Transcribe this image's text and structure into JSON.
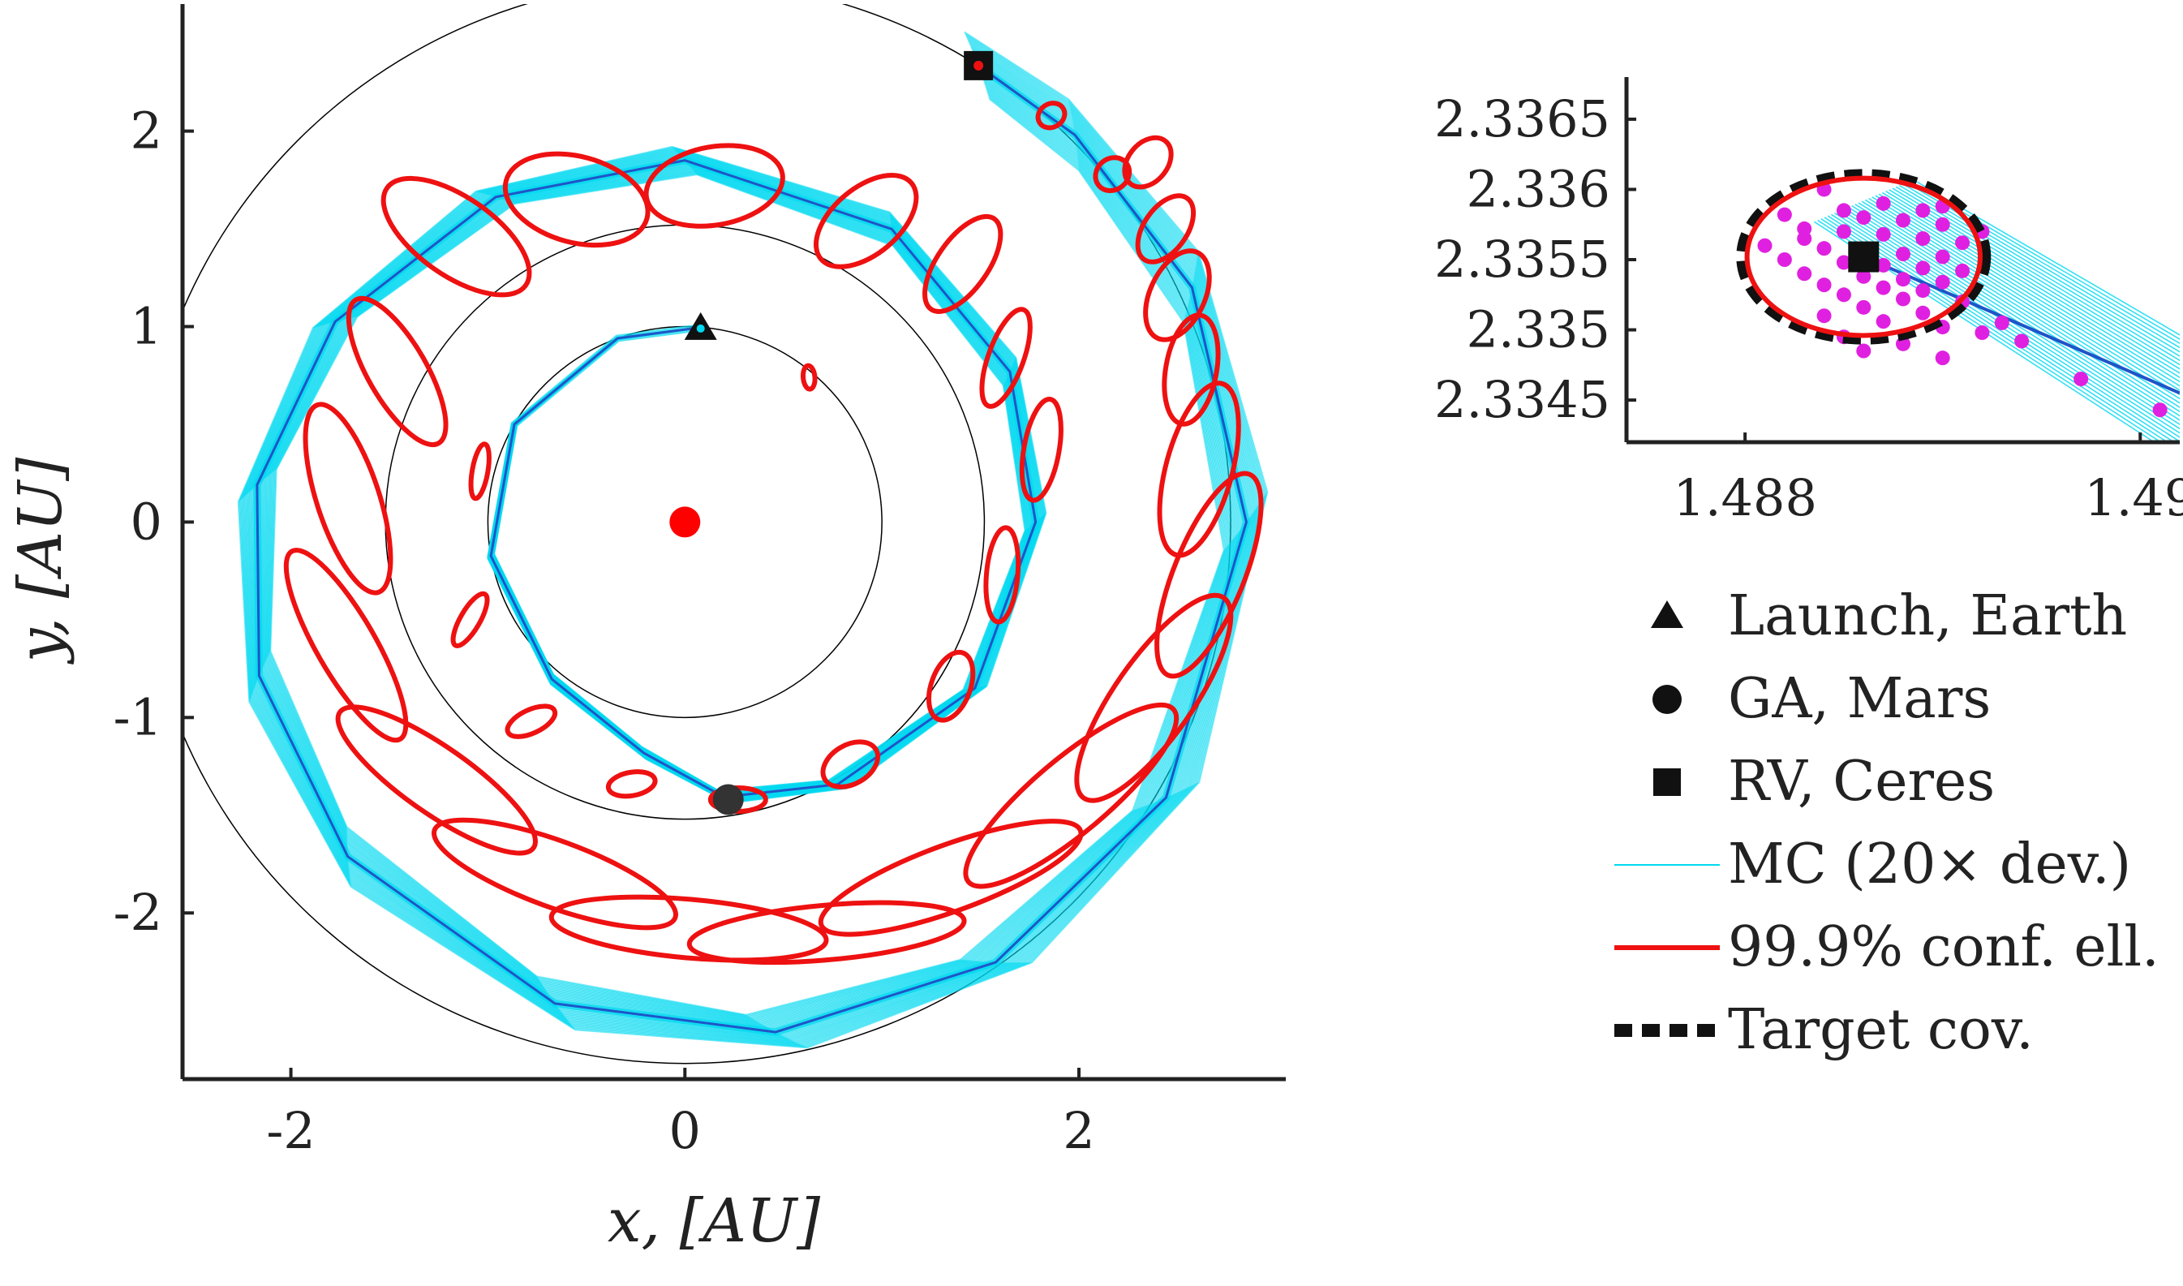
{
  "chart_data": [
    {
      "type": "scatter",
      "panel": "main-trajectory",
      "xlabel": "x, [AU]",
      "ylabel": "y, [AU]",
      "xlim": [
        -2.55,
        3.05
      ],
      "ylim": [
        -2.85,
        2.65
      ],
      "xticks": [
        -2,
        0,
        2
      ],
      "yticks": [
        -2,
        -1,
        0,
        1,
        2
      ],
      "xtick_labels": [
        "-2",
        "0",
        "2"
      ],
      "ytick_labels": [
        "-2",
        "-1",
        "0",
        "1",
        "2"
      ],
      "grid": false,
      "sun": {
        "x": 0,
        "y": 0,
        "color": "#ff0000"
      },
      "planet_orbits": [
        {
          "name": "Earth orbit",
          "radius": 1.0
        },
        {
          "name": "Mars orbit",
          "radius": 1.52
        },
        {
          "name": "Ceres orbit",
          "radius": 2.77
        }
      ],
      "events": [
        {
          "label": "Launch, Earth",
          "marker": "triangle",
          "x": 0.08,
          "y": 0.99
        },
        {
          "label": "GA, Mars",
          "marker": "circle",
          "x": 0.22,
          "y": -1.42
        },
        {
          "label": "RV, Ceres",
          "marker": "square",
          "x": 1.49,
          "y": 2.335
        }
      ],
      "nominal_trajectory_polar": {
        "description_r_theta_deg": [
          [
            1.0,
            85
          ],
          [
            1.0,
            110
          ],
          [
            1.0,
            150
          ],
          [
            1.0,
            190
          ],
          [
            1.05,
            230
          ],
          [
            1.2,
            260
          ],
          [
            1.42,
            278
          ],
          [
            1.55,
            300
          ],
          [
            1.7,
            330
          ],
          [
            1.78,
            0
          ],
          [
            1.82,
            25
          ],
          [
            1.83,
            55
          ],
          [
            1.85,
            90
          ],
          [
            1.92,
            120
          ],
          [
            2.05,
            150
          ],
          [
            2.18,
            175
          ],
          [
            2.3,
            200
          ],
          [
            2.42,
            225
          ],
          [
            2.55,
            255
          ],
          [
            2.65,
            280
          ],
          [
            2.75,
            305
          ],
          [
            2.82,
            330
          ],
          [
            2.85,
            0
          ],
          [
            2.84,
            25
          ],
          [
            2.8,
            45
          ],
          [
            2.77,
            57.5
          ]
        ]
      },
      "ellipses": [
        {
          "x": 0.63,
          "y": 0.74,
          "a": 0.06,
          "b": 0.03,
          "angle": 95
        },
        {
          "x": -1.04,
          "y": 0.26,
          "a": 0.14,
          "b": 0.04,
          "angle": 80
        },
        {
          "x": -1.09,
          "y": -0.5,
          "a": 0.15,
          "b": 0.05,
          "angle": 60
        },
        {
          "x": -0.78,
          "y": -1.02,
          "a": 0.13,
          "b": 0.06,
          "angle": 25
        },
        {
          "x": -0.27,
          "y": -1.34,
          "a": 0.12,
          "b": 0.06,
          "angle": 10
        },
        {
          "x": 0.27,
          "y": -1.42,
          "a": 0.14,
          "b": 0.06,
          "angle": 0
        },
        {
          "x": 0.84,
          "y": -1.24,
          "a": 0.15,
          "b": 0.1,
          "angle": 30
        },
        {
          "x": 1.35,
          "y": -0.84,
          "a": 0.18,
          "b": 0.1,
          "angle": 70
        },
        {
          "x": 1.61,
          "y": -0.27,
          "a": 0.24,
          "b": 0.08,
          "angle": 85
        },
        {
          "x": 1.81,
          "y": 0.37,
          "a": 0.26,
          "b": 0.09,
          "angle": 80
        },
        {
          "x": 1.63,
          "y": 0.84,
          "a": 0.26,
          "b": 0.09,
          "angle": 70
        },
        {
          "x": 1.41,
          "y": 1.32,
          "a": 0.28,
          "b": 0.13,
          "angle": 55
        },
        {
          "x": 0.92,
          "y": 1.54,
          "a": 0.3,
          "b": 0.17,
          "angle": 40
        },
        {
          "x": 0.15,
          "y": 1.72,
          "a": 0.35,
          "b": 0.2,
          "angle": 10
        },
        {
          "x": -0.55,
          "y": 1.65,
          "a": 0.37,
          "b": 0.22,
          "angle": -15
        },
        {
          "x": -1.16,
          "y": 1.46,
          "a": 0.43,
          "b": 0.2,
          "angle": -35
        },
        {
          "x": -1.46,
          "y": 0.77,
          "a": 0.42,
          "b": 0.15,
          "angle": -60
        },
        {
          "x": -1.71,
          "y": 0.12,
          "a": 0.5,
          "b": 0.16,
          "angle": -72
        },
        {
          "x": -1.72,
          "y": -0.63,
          "a": 0.55,
          "b": 0.15,
          "angle": -60
        },
        {
          "x": -1.26,
          "y": -1.32,
          "a": 0.6,
          "b": 0.17,
          "angle": -35
        },
        {
          "x": -0.66,
          "y": -1.8,
          "a": 0.65,
          "b": 0.17,
          "angle": -20
        },
        {
          "x": 0.02,
          "y": -2.08,
          "a": 0.7,
          "b": 0.15,
          "angle": -5
        },
        {
          "x": 0.72,
          "y": -2.1,
          "a": 0.7,
          "b": 0.14,
          "angle": 5
        },
        {
          "x": 1.35,
          "y": -1.82,
          "a": 0.7,
          "b": 0.17,
          "angle": 20
        },
        {
          "x": 1.96,
          "y": -1.4,
          "a": 0.68,
          "b": 0.19,
          "angle": 40
        },
        {
          "x": 2.38,
          "y": -0.9,
          "a": 0.62,
          "b": 0.2,
          "angle": 55
        },
        {
          "x": 2.66,
          "y": -0.27,
          "a": 0.55,
          "b": 0.18,
          "angle": 68
        },
        {
          "x": 2.61,
          "y": 0.27,
          "a": 0.45,
          "b": 0.17,
          "angle": 75
        },
        {
          "x": 2.57,
          "y": 0.78,
          "a": 0.28,
          "b": 0.13,
          "angle": 80
        },
        {
          "x": 2.5,
          "y": 1.16,
          "a": 0.24,
          "b": 0.14,
          "angle": 65
        },
        {
          "x": 2.44,
          "y": 1.5,
          "a": 0.19,
          "b": 0.11,
          "angle": 55
        },
        {
          "x": 2.35,
          "y": 1.84,
          "a": 0.14,
          "b": 0.1,
          "angle": 50
        },
        {
          "x": 2.17,
          "y": 1.78,
          "a": 0.09,
          "b": 0.08,
          "angle": 40
        },
        {
          "x": 1.86,
          "y": 2.08,
          "a": 0.07,
          "b": 0.06,
          "angle": 30
        }
      ]
    },
    {
      "type": "scatter",
      "panel": "zoom-at-rendezvous",
      "xlim": [
        1.4874,
        1.4902
      ],
      "ylim": [
        2.3342,
        2.3368
      ],
      "xticks": [
        1.488,
        1.49
      ],
      "yticks": [
        2.3345,
        2.335,
        2.3355,
        2.336,
        2.3365
      ],
      "xtick_labels": [
        "1.488",
        "1.49"
      ],
      "ytick_labels": [
        "2.3345",
        "2.335",
        "2.3355",
        "2.336",
        "2.3365"
      ],
      "grid": false,
      "target": {
        "x": 1.4886,
        "y": 2.33552
      },
      "confidence_ellipse": {
        "cx": 1.4886,
        "cy": 2.33552,
        "rx": 0.00059,
        "ry": 0.00056
      },
      "target_covariance": {
        "cx": 1.4886,
        "cy": 2.33552,
        "rx": 0.00062,
        "ry": 0.00059
      },
      "mc_points": [
        [
          1.4884,
          2.336
        ],
        [
          1.4887,
          2.3359
        ],
        [
          1.4885,
          2.33585
        ],
        [
          1.4889,
          2.33585
        ],
        [
          1.4882,
          2.33582
        ],
        [
          1.4886,
          2.3358
        ],
        [
          1.4888,
          2.33578
        ],
        [
          1.489,
          2.33575
        ],
        [
          1.4883,
          2.33572
        ],
        [
          1.4885,
          2.3357
        ],
        [
          1.4887,
          2.33568
        ],
        [
          1.4889,
          2.33565
        ],
        [
          1.4891,
          2.33562
        ],
        [
          1.4881,
          2.3356
        ],
        [
          1.4884,
          2.33558
        ],
        [
          1.4886,
          2.33556
        ],
        [
          1.4888,
          2.33554
        ],
        [
          1.489,
          2.33552
        ],
        [
          1.4882,
          2.3355
        ],
        [
          1.4885,
          2.33548
        ],
        [
          1.4887,
          2.33546
        ],
        [
          1.4889,
          2.33544
        ],
        [
          1.4891,
          2.33542
        ],
        [
          1.4883,
          2.3354
        ],
        [
          1.4886,
          2.33538
        ],
        [
          1.4888,
          2.33536
        ],
        [
          1.489,
          2.33534
        ],
        [
          1.4884,
          2.33532
        ],
        [
          1.4887,
          2.3353
        ],
        [
          1.4889,
          2.33528
        ],
        [
          1.4885,
          2.33525
        ],
        [
          1.4888,
          2.33522
        ],
        [
          1.4891,
          2.3352
        ],
        [
          1.4886,
          2.33516
        ],
        [
          1.4889,
          2.33512
        ],
        [
          1.4884,
          2.3351
        ],
        [
          1.4887,
          2.33506
        ],
        [
          1.489,
          2.33502
        ],
        [
          1.4893,
          2.33505
        ],
        [
          1.4892,
          2.33498
        ],
        [
          1.4885,
          2.33495
        ],
        [
          1.4888,
          2.3349
        ],
        [
          1.4894,
          2.33492
        ],
        [
          1.4886,
          2.33485
        ],
        [
          1.489,
          2.3348
        ],
        [
          1.4897,
          2.33465
        ],
        [
          1.4901,
          2.33443
        ],
        [
          1.4883,
          2.33565
        ],
        [
          1.489,
          2.33588
        ],
        [
          1.4892,
          2.3357
        ]
      ]
    }
  ],
  "legend": {
    "placement": "right",
    "items": [
      {
        "label": "Launch, Earth",
        "symbol": "triangle"
      },
      {
        "label": "GA, Mars",
        "symbol": "circle"
      },
      {
        "label": "RV, Ceres",
        "symbol": "square"
      },
      {
        "label": "MC (20× dev.)",
        "symbol": "line-cyan"
      },
      {
        "label": "99.9% conf. ell.",
        "symbol": "line-red"
      },
      {
        "label": "Target cov.",
        "symbol": "line-dashed-black"
      }
    ]
  },
  "colors": {
    "mc": "#00d8f0",
    "nominal": "#1f55c8",
    "ellipse": "#ee1111",
    "target": "#111111",
    "mc_points": "#e020e0",
    "orbit": "#000000"
  }
}
